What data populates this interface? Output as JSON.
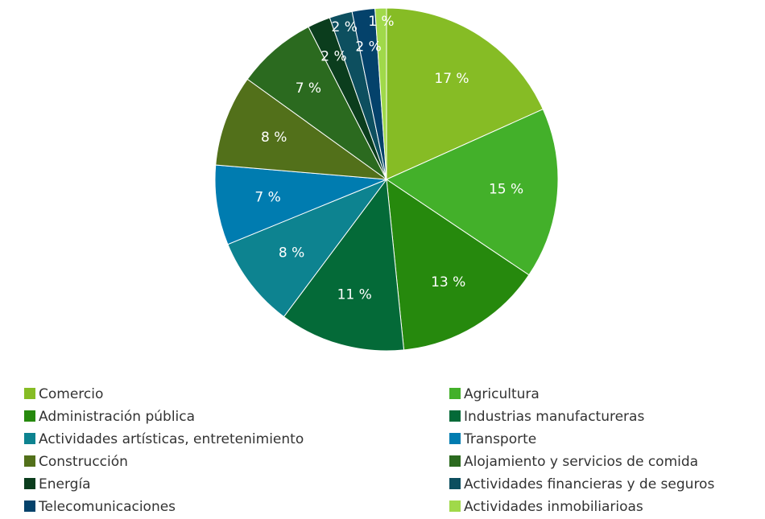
{
  "chart_data": {
    "type": "pie",
    "categories": [
      "Comercio",
      "Agricultura",
      "Administración pública",
      "Industrias manufactureras",
      "Actividades artísticas, entretenimiento",
      "Transporte",
      "Construcción",
      "Alojamiento y servicios de comida",
      "Energía",
      "Actividades financieras y de seguros",
      "Telecomunicaciones",
      "Actividades inmobiliarioas"
    ],
    "values": [
      17,
      15,
      13,
      11,
      8,
      7,
      8,
      7,
      2,
      2,
      2,
      1
    ],
    "value_labels": [
      "17 %",
      "15 %",
      "13 %",
      "11 %",
      "8 %",
      "7 %",
      "8 %",
      "7 %",
      "2 %",
      "2 %",
      "2 %",
      "1 %"
    ],
    "colors": [
      "#86bc25",
      "#43b02a",
      "#26890d",
      "#046a38",
      "#0d8390",
      "#007cb0",
      "#52701a",
      "#2b6a1f",
      "#0b3d1d",
      "#0d4f5f",
      "#04426b",
      "#a0d94a"
    ],
    "legend": "bottom"
  }
}
